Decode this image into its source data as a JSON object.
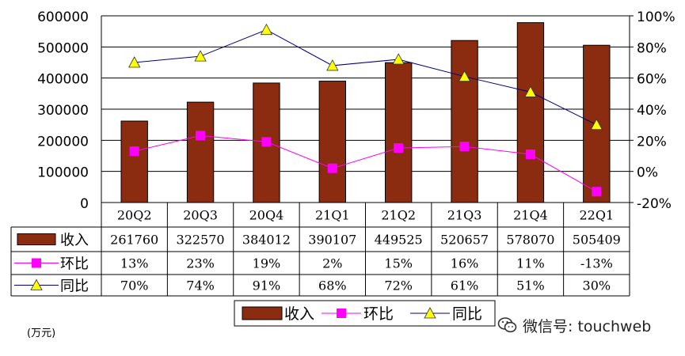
{
  "chart_data": {
    "type": "bar",
    "categories": [
      "20Q2",
      "20Q3",
      "20Q4",
      "21Q1",
      "21Q2",
      "21Q3",
      "21Q4",
      "22Q1"
    ],
    "series": [
      {
        "name": "收入",
        "type": "bar",
        "axis": "left",
        "color": "#8B2C10",
        "values": [
          261760,
          322570,
          384012,
          390107,
          449525,
          520657,
          578070,
          505409
        ]
      },
      {
        "name": "环比",
        "type": "line",
        "axis": "right",
        "color": "#FF00FF",
        "marker": "square",
        "values": [
          13,
          23,
          19,
          2,
          15,
          16,
          11,
          -13
        ],
        "labels": [
          "13%",
          "23%",
          "19%",
          "2%",
          "15%",
          "16%",
          "11%",
          "-13%"
        ]
      },
      {
        "name": "同比",
        "type": "line",
        "axis": "right",
        "color": "#000080",
        "marker": "triangle",
        "marker_color": "#FFFF00",
        "values": [
          70,
          74,
          91,
          68,
          72,
          61,
          51,
          30
        ],
        "labels": [
          "70%",
          "74%",
          "91%",
          "68%",
          "72%",
          "61%",
          "51%",
          "30%"
        ]
      }
    ],
    "left_axis": {
      "min": 0,
      "max": 600000,
      "step": 100000,
      "ticks": [
        "0",
        "100000",
        "200000",
        "300000",
        "400000",
        "500000",
        "600000"
      ]
    },
    "right_axis": {
      "min": -20,
      "max": 100,
      "step": 20,
      "ticks": [
        "-20%",
        "0%",
        "20%",
        "40%",
        "60%",
        "80%",
        "100%"
      ]
    },
    "grid": true,
    "legend": {
      "position": "bottom"
    },
    "unit_label": "(万元)"
  },
  "watermark": {
    "text": "微信号: touchweb",
    "icon": "wechat-icon"
  }
}
